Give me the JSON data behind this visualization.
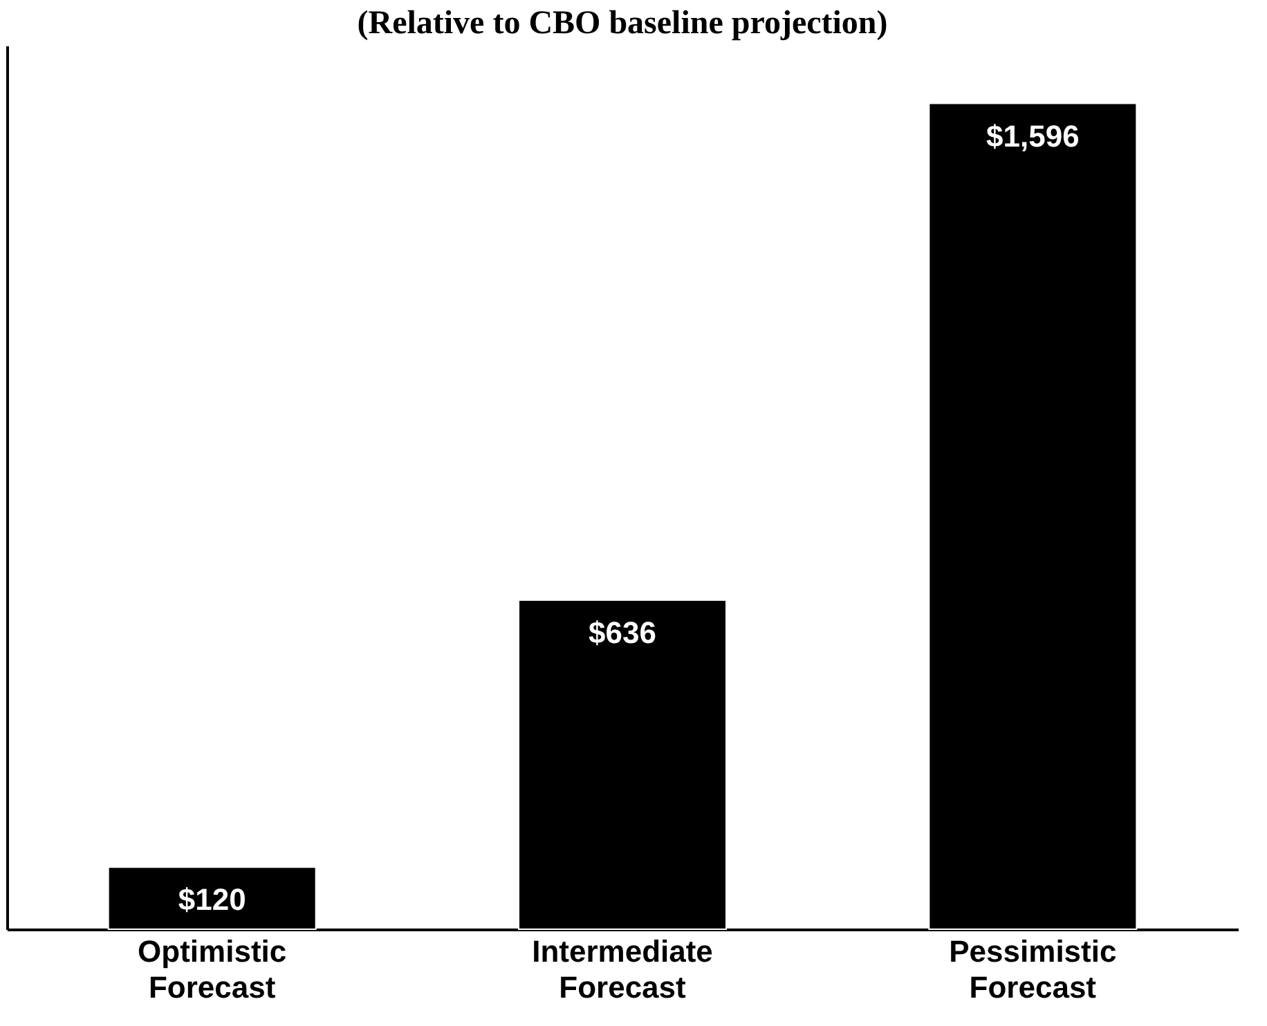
{
  "chart_data": {
    "type": "bar",
    "title": "(Relative to CBO baseline projection)",
    "categories": [
      "Optimistic Forecast",
      "Intermediate Forecast",
      "Pessimistic Forecast"
    ],
    "values": [
      120,
      636,
      1596
    ],
    "color": "#000000",
    "value_labels": [
      "$120",
      "$636",
      "$1,596"
    ],
    "grid": false
  }
}
